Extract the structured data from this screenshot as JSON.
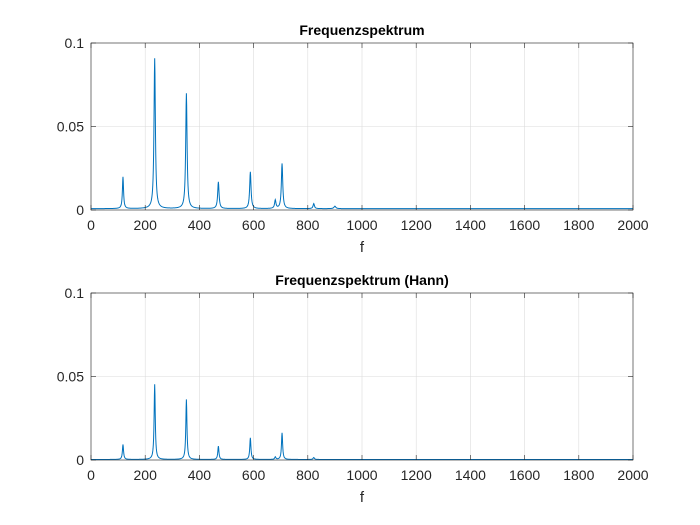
{
  "chart_data": [
    {
      "type": "line",
      "title": "Frequenzspektrum",
      "xlabel": "f",
      "ylabel": "",
      "xlim": [
        0,
        2000
      ],
      "ylim": [
        0,
        0.1
      ],
      "xticks": [
        "0",
        "200",
        "400",
        "600",
        "800",
        "1000",
        "1200",
        "1400",
        "1600",
        "1800",
        "2000"
      ],
      "yticks": [
        "0",
        "0.05",
        "0.1"
      ],
      "grid": true,
      "line_color": "#0072BD",
      "baseline": 0.0008,
      "peaks": [
        {
          "f": 118,
          "a": 0.019,
          "w": 2.5
        },
        {
          "f": 235,
          "a": 0.09,
          "w": 3.0
        },
        {
          "f": 352,
          "a": 0.069,
          "w": 3.0
        },
        {
          "f": 470,
          "a": 0.016,
          "w": 3.0
        },
        {
          "f": 588,
          "a": 0.022,
          "w": 3.0
        },
        {
          "f": 705,
          "a": 0.027,
          "w": 3.0
        },
        {
          "f": 680,
          "a": 0.005,
          "w": 3.0
        },
        {
          "f": 822,
          "a": 0.003,
          "w": 3.0
        },
        {
          "f": 900,
          "a": 0.0015,
          "w": 4.0
        }
      ]
    },
    {
      "type": "line",
      "title": "Frequenzspektrum (Hann)",
      "xlabel": "f",
      "ylabel": "",
      "xlim": [
        0,
        2000
      ],
      "ylim": [
        0,
        0.1
      ],
      "xticks": [
        "0",
        "200",
        "400",
        "600",
        "800",
        "1000",
        "1200",
        "1400",
        "1600",
        "1800",
        "2000"
      ],
      "yticks": [
        "0",
        "0.05",
        "0.1"
      ],
      "grid": true,
      "line_color": "#0072BD",
      "baseline": 0.0003,
      "peaks": [
        {
          "f": 118,
          "a": 0.009,
          "w": 2.5
        },
        {
          "f": 235,
          "a": 0.045,
          "w": 2.5
        },
        {
          "f": 352,
          "a": 0.036,
          "w": 2.5
        },
        {
          "f": 470,
          "a": 0.008,
          "w": 2.5
        },
        {
          "f": 588,
          "a": 0.013,
          "w": 2.5
        },
        {
          "f": 705,
          "a": 0.016,
          "w": 2.5
        },
        {
          "f": 680,
          "a": 0.0015,
          "w": 2.5
        },
        {
          "f": 822,
          "a": 0.0012,
          "w": 3.0
        }
      ]
    }
  ]
}
